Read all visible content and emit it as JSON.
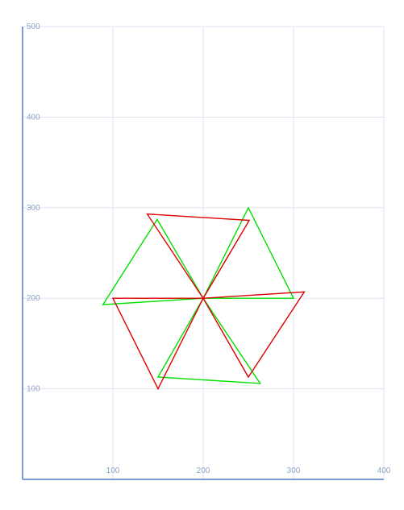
{
  "chart_data": {
    "type": "line",
    "title": "",
    "xlabel": "",
    "ylabel": "",
    "xlim": [
      0,
      400
    ],
    "ylim": [
      0,
      500
    ],
    "x_ticks": [
      100,
      200,
      300,
      400
    ],
    "y_ticks": [
      100,
      200,
      300,
      400,
      500
    ],
    "grid": true,
    "legend": "none",
    "colors": {
      "grid": "#dde3ef",
      "axis": "#7b9bd6",
      "tick_label": "#8fa3c8"
    },
    "series": [
      {
        "color": "#00e000",
        "closed_shapes": [
          [
            [
              200,
              200
            ],
            [
              250,
              300
            ],
            [
              300,
              200
            ]
          ],
          [
            [
              200,
              200
            ],
            [
              150,
              113
            ],
            [
              263,
              106
            ]
          ],
          [
            [
              200,
              200
            ],
            [
              89,
              193
            ],
            [
              149,
              287
            ]
          ]
        ]
      },
      {
        "color": "#dd0000",
        "closed_shapes": [
          [
            [
              200,
              200
            ],
            [
              312,
              207
            ],
            [
              250,
              113
            ]
          ],
          [
            [
              200,
              200
            ],
            [
              150,
              100
            ],
            [
              100,
              200
            ]
          ],
          [
            [
              200,
              200
            ],
            [
              138,
              293
            ],
            [
              251,
              286
            ]
          ]
        ]
      }
    ]
  }
}
